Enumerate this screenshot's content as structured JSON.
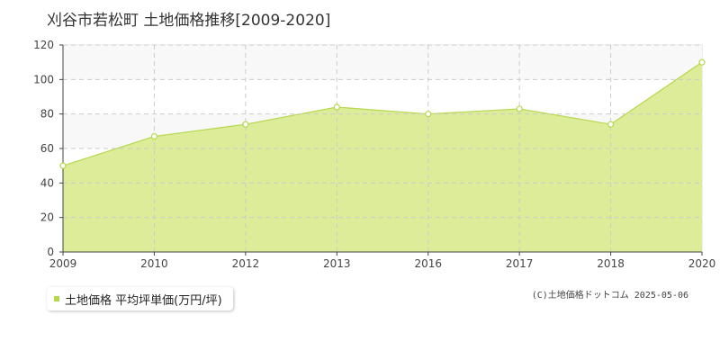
{
  "title": "刈谷市若松町 土地価格推移[2009-2020]",
  "legend": {
    "label": "土地価格 平均坪単価(万円/坪)"
  },
  "copyright": "(C)土地価格ドットコム 2025-05-06",
  "colors": {
    "fill": "#dcec99",
    "line": "#b5d84d",
    "band": "#f8f8f8",
    "grid": "#cccccc"
  },
  "chart_data": {
    "type": "area",
    "x": [
      "2009",
      "2010",
      "2012",
      "2013",
      "2016",
      "2017",
      "2018",
      "2020"
    ],
    "series": [
      {
        "name": "土地価格 平均坪単価(万円/坪)",
        "values": [
          50,
          67,
          74,
          84,
          80,
          83,
          74,
          110
        ]
      }
    ],
    "ylim": [
      0,
      120
    ],
    "yticks": [
      0,
      20,
      40,
      60,
      80,
      100,
      120
    ],
    "grid": true,
    "legend_position": "bottom-left"
  }
}
